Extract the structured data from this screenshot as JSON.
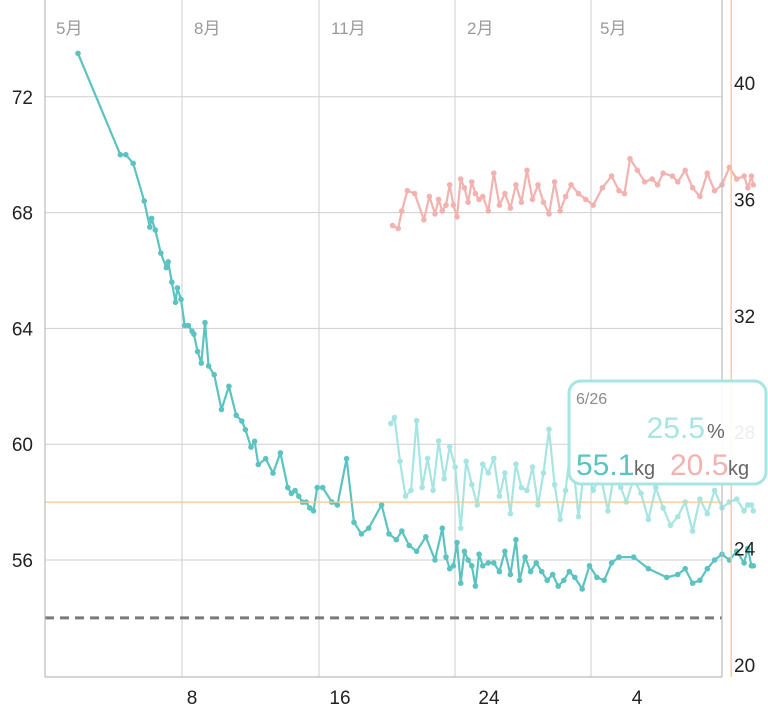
{
  "chart_data": {
    "type": "line",
    "x_axis": {
      "bottom_ticks": [
        "8",
        "16",
        "24",
        "4"
      ],
      "month_labels": [
        "5月",
        "8月",
        "11月",
        "2月",
        "5月"
      ]
    },
    "y_left": {
      "ticks": [
        56,
        60,
        64,
        68,
        72
      ],
      "range": [
        51.5,
        75.5
      ]
    },
    "y_right": {
      "ticks": [
        20,
        24,
        28,
        32,
        36,
        40
      ],
      "range": [
        20,
        41
      ]
    },
    "target_weight": 54,
    "crosshair": {
      "x": 36.5,
      "weight": 58
    },
    "series": [
      {
        "axis": "left",
        "color": "#5bc3c0",
        "x": [
          1,
          3.3,
          3.6,
          4,
          4.6,
          4.9,
          5.0,
          5.2,
          5.5,
          5.8,
          5.9,
          6.1,
          6.3,
          6.4,
          6.6,
          6.8,
          7.0,
          7.2,
          7.3,
          7.5,
          7.7,
          7.9,
          8.1,
          8.4,
          8.8,
          9.2,
          9.6,
          9.9,
          10.1,
          10.4,
          10.6,
          10.8,
          11.2,
          11.6,
          12,
          12.4,
          12.6,
          12.8,
          13,
          13.2,
          13.4,
          13.6,
          13.8,
          14,
          14.3,
          14.8,
          15.1,
          15.6,
          16,
          16.4,
          16.8,
          17.5,
          17.9,
          18.3,
          18.6,
          19,
          19.4,
          19.9,
          20.4,
          20.8,
          21.0,
          21.2,
          21.4,
          21.6,
          21.8,
          22.0,
          22.2,
          22.4,
          22.6,
          22.8,
          23.0,
          23.3,
          23.6,
          23.9,
          24.2,
          24.5,
          24.8,
          25.0,
          25.3,
          25.6,
          25.9,
          26.2,
          26.5,
          26.8,
          27.1,
          27.4,
          27.7,
          28.0,
          28.4,
          28.8,
          29.2,
          29.6,
          30.0,
          30.4,
          31.2,
          32.0,
          33.0,
          33.6,
          34.0,
          34.4,
          34.8,
          35.2,
          35.6,
          36.0,
          36.4,
          36.8,
          37.2,
          37.4,
          37.6,
          37.7
        ],
        "y": [
          73.5,
          70,
          70,
          69.7,
          68.4,
          67.5,
          67.8,
          67.4,
          66.6,
          66.1,
          66.3,
          65.6,
          64.9,
          65.4,
          65,
          64.1,
          64.1,
          63.9,
          63.8,
          63.2,
          62.8,
          64.2,
          62.7,
          62.4,
          61.2,
          62.0,
          61.0,
          60.8,
          60.5,
          59.9,
          60.1,
          59.3,
          59.5,
          59.0,
          59.7,
          58.5,
          58.3,
          58.4,
          58.2,
          58.0,
          58.0,
          57.8,
          57.7,
          58.5,
          58.5,
          58.0,
          57.9,
          59.5,
          57.3,
          56.9,
          57.1,
          57.9,
          56.9,
          56.7,
          57.0,
          56.5,
          56.3,
          56.8,
          56.0,
          57.1,
          56.1,
          55.7,
          55.8,
          56.6,
          55.2,
          56.3,
          56.0,
          55.8,
          55.1,
          56.2,
          55.8,
          55.9,
          55.9,
          55.6,
          56.3,
          55.5,
          56.7,
          55.3,
          56.1,
          55.6,
          55.9,
          55.6,
          55.3,
          55.5,
          55.1,
          55.3,
          55.6,
          55.4,
          55.0,
          55.8,
          55.4,
          55.3,
          55.9,
          56.1,
          56.1,
          55.7,
          55.4,
          55.5,
          55.7,
          55.2,
          55.3,
          55.7,
          56.0,
          56.2,
          56.0,
          56.3,
          55.9,
          56.4,
          55.8,
          55.8
        ]
      },
      {
        "axis": "right",
        "color": "#f2b3b0",
        "x": [
          18.1,
          18.4,
          18.6,
          18.9,
          19.3,
          19.8,
          20.1,
          20.4,
          20.6,
          20.8,
          21.0,
          21.2,
          21.4,
          21.6,
          21.8,
          22.0,
          22.2,
          22.4,
          22.6,
          22.8,
          23.0,
          23.3,
          23.6,
          23.9,
          24.2,
          24.5,
          24.8,
          25.1,
          25.4,
          25.7,
          26.0,
          26.3,
          26.6,
          26.9,
          27.2,
          27.5,
          27.8,
          28.2,
          28.6,
          29.0,
          29.5,
          30.0,
          30.4,
          30.7,
          31.0,
          31.4,
          31.8,
          32.2,
          32.5,
          32.8,
          33.3,
          33.6,
          34.0,
          34.4,
          34.8,
          35.2,
          35.6,
          36.0,
          36.4,
          36.8,
          37.2,
          37.4,
          37.6,
          37.7
        ],
        "y": [
          35.1,
          35.0,
          35.6,
          36.3,
          36.2,
          35.3,
          36.1,
          35.5,
          36.0,
          35.6,
          35.8,
          36.5,
          35.8,
          35.4,
          36.7,
          36.4,
          35.9,
          36.6,
          36.2,
          36.0,
          36.1,
          35.6,
          36.9,
          35.8,
          36.2,
          35.7,
          36.5,
          35.9,
          37.0,
          36.0,
          36.5,
          35.9,
          35.5,
          36.6,
          35.6,
          36.1,
          36.5,
          36.2,
          36.0,
          35.8,
          36.4,
          36.8,
          36.3,
          36.2,
          37.4,
          37.0,
          36.6,
          36.7,
          36.5,
          36.9,
          36.8,
          36.6,
          37.0,
          36.4,
          36.1,
          36.9,
          36.3,
          36.5,
          37.1,
          36.7,
          36.8,
          36.4,
          36.8,
          36.5
        ]
      },
      {
        "axis": "right",
        "color": "#a7e5e3",
        "x": [
          18.0,
          18.2,
          18.5,
          18.8,
          19.1,
          19.4,
          19.7,
          20.0,
          20.3,
          20.6,
          20.9,
          21.2,
          21.5,
          21.8,
          22.1,
          22.4,
          22.7,
          23.0,
          23.3,
          23.6,
          23.9,
          24.2,
          24.5,
          24.8,
          25.1,
          25.4,
          25.7,
          26.0,
          26.3,
          26.6,
          26.9,
          27.2,
          27.5,
          27.8,
          28.2,
          28.6,
          29.0,
          29.4,
          29.8,
          30.2,
          30.5,
          30.8,
          31.2,
          31.6,
          32.0,
          32.4,
          32.8,
          33.2,
          33.6,
          34.0,
          34.4,
          34.8,
          35.2,
          35.6,
          36.0,
          36.4,
          36.8,
          37.2,
          37.4,
          37.6,
          37.7
        ],
        "y": [
          28.3,
          28.5,
          27.0,
          25.8,
          26.0,
          28.4,
          26.1,
          27.1,
          26.0,
          27.7,
          26.4,
          27.5,
          26.8,
          24.7,
          27.0,
          26.2,
          25.5,
          26.9,
          26.6,
          27.1,
          25.8,
          26.6,
          25.2,
          26.9,
          26.1,
          26.0,
          26.8,
          25.5,
          26.6,
          28.1,
          26.2,
          25.0,
          26.0,
          27.6,
          25.1,
          27.2,
          26.0,
          26.5,
          25.3,
          26.8,
          26.1,
          25.6,
          26.4,
          25.9,
          25.0,
          26.1,
          25.4,
          24.8,
          25.1,
          25.6,
          24.6,
          25.7,
          25.2,
          26.0,
          25.4,
          25.6,
          25.7,
          25.3,
          25.5,
          25.5,
          25.3
        ]
      }
    ]
  },
  "tooltip": {
    "date": "6/26",
    "percent_value": "25.5",
    "percent_unit": "%",
    "weight_value": "55.1",
    "weight_unit": "kg",
    "fat_value": "20.5",
    "fat_unit": "kg"
  },
  "colors": {
    "weight": "#5bc3c0",
    "percent": "#a7e5e3",
    "fat": "#f2b3b0",
    "grid": "#cfcfcf",
    "crosshair": "#f5c98a",
    "target": "#7a7a7a"
  }
}
